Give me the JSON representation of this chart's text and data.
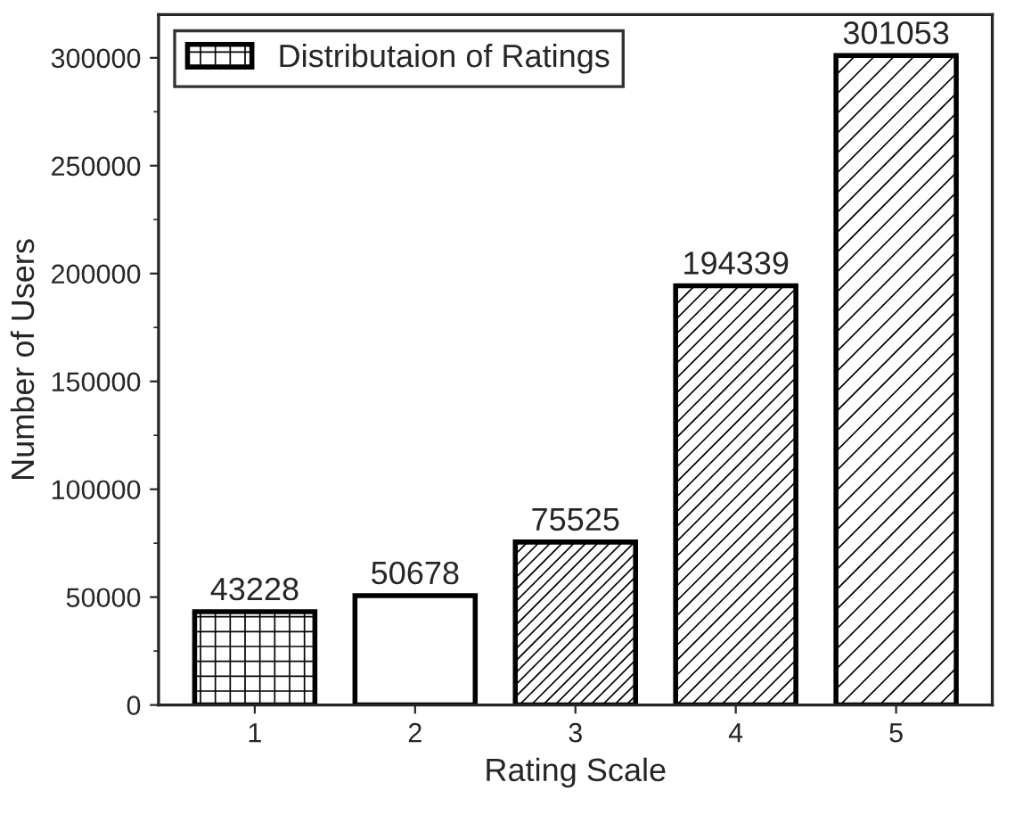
{
  "chart_data": {
    "type": "bar",
    "xlabel": "Rating Scale",
    "ylabel": "Number of Users",
    "categories": [
      "1",
      "2",
      "3",
      "4",
      "5"
    ],
    "series": [
      {
        "name": "Distributaion of Ratings",
        "color": "#000000",
        "values": [
          43228,
          50678,
          75525,
          194339,
          301053
        ]
      }
    ],
    "ylim": [
      0,
      320000
    ],
    "yticks": [
      0,
      50000,
      100000,
      150000,
      200000,
      250000,
      300000
    ],
    "data_labels": true,
    "legend": "top left",
    "grid": false
  }
}
